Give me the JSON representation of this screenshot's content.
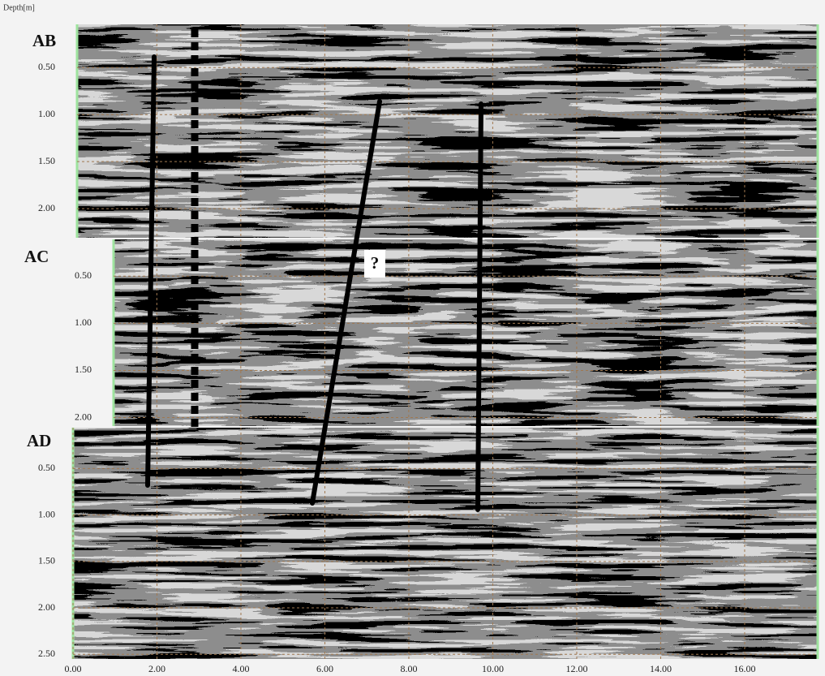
{
  "chart_data": [
    {
      "type": "radargram",
      "title": "AB",
      "ylabel": "Depth[m]",
      "xlim": [
        0.1,
        17.74
      ],
      "ylim": [
        0.04,
        2.31
      ],
      "yticks": [
        {
          "value": 0.5,
          "label": "0.50"
        },
        {
          "value": 1,
          "label": "1.00"
        },
        {
          "value": 1.5,
          "label": "1.50"
        },
        {
          "value": 2,
          "label": "2.00"
        }
      ]
    },
    {
      "type": "radargram",
      "title": "AC",
      "annotation": "?",
      "xlim": [
        0.97,
        17.74
      ],
      "ylim": [
        0.11,
        2.09
      ],
      "yticks": [
        {
          "value": 0.5,
          "label": "0.50"
        },
        {
          "value": 1,
          "label": "1.00"
        },
        {
          "value": 1.5,
          "label": "1.50"
        },
        {
          "value": 2,
          "label": "2.00"
        }
      ]
    },
    {
      "type": "radargram",
      "title": "AD",
      "xlim": [
        0,
        17.74
      ],
      "ylim": [
        0.06,
        2.55
      ],
      "yticks": [
        {
          "value": 0.5,
          "label": "0.50"
        },
        {
          "value": 1,
          "label": "1.00"
        },
        {
          "value": 1.5,
          "label": "1.50"
        },
        {
          "value": 2,
          "label": "2.00"
        },
        {
          "value": 2.5,
          "label": "2.50"
        }
      ],
      "xticks": [
        {
          "value": 0,
          "label": "0.00"
        },
        {
          "value": 2,
          "label": "2.00"
        },
        {
          "value": 4,
          "label": "4.00"
        },
        {
          "value": 6,
          "label": "6.00"
        },
        {
          "value": 8,
          "label": "8.00"
        },
        {
          "value": 10,
          "label": "10.00"
        },
        {
          "value": 12,
          "label": "12.00"
        },
        {
          "value": 14,
          "label": "14.00"
        },
        {
          "value": 16,
          "label": "16.00"
        }
      ]
    }
  ]
}
